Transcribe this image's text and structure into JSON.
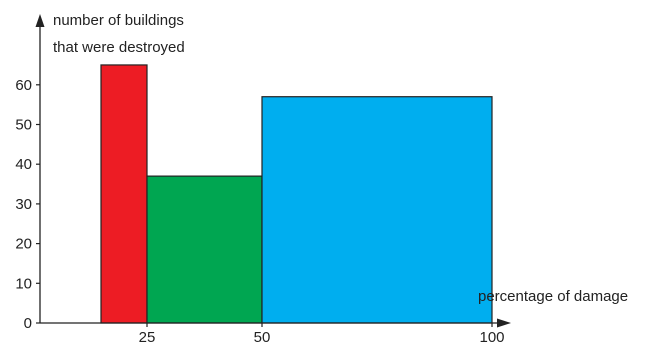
{
  "chart_data": {
    "type": "bar",
    "title": "",
    "ylabel_lines": [
      "number of buildings",
      "that were destroyed"
    ],
    "xlabel": "percentage of damage",
    "bins": [
      {
        "x_start": 15,
        "x_end": 25,
        "value": 65,
        "color": "#ED1C24"
      },
      {
        "x_start": 25,
        "x_end": 50,
        "value": 37,
        "color": "#00A651"
      },
      {
        "x_start": 50,
        "x_end": 100,
        "value": 57,
        "color": "#00AEEF"
      }
    ],
    "x_ticks": [
      "25",
      "50",
      "100"
    ],
    "y_ticks": [
      "0",
      "10",
      "20",
      "30",
      "40",
      "50",
      "60"
    ],
    "ylim": [
      0,
      70
    ],
    "grid": false
  }
}
